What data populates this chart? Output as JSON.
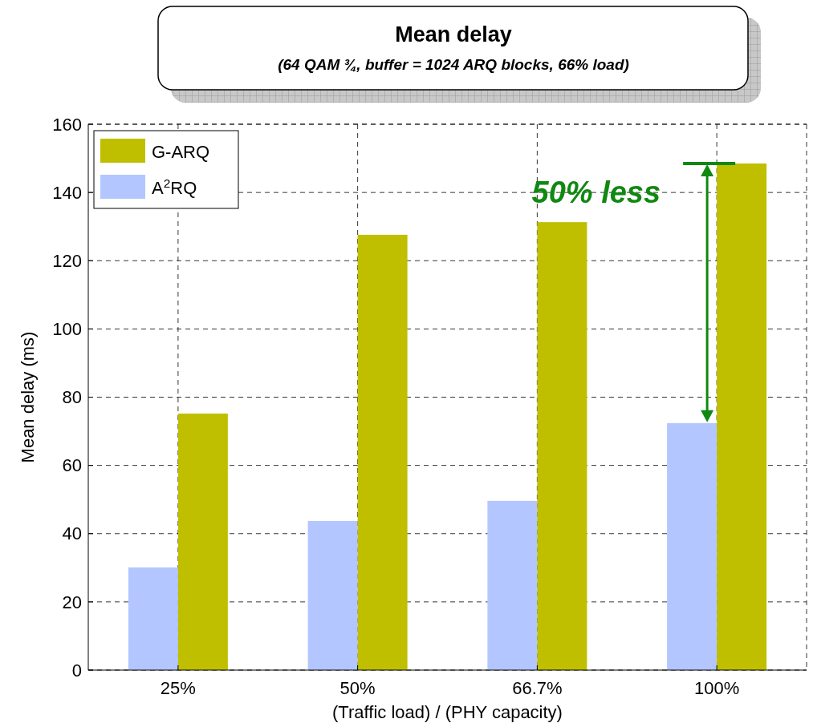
{
  "chart_data": {
    "type": "bar",
    "title": "Mean delay",
    "subtitle": "(64 QAM ¾, buffer = 1024 ARQ blocks, 66% load)",
    "xlabel": "(Traffic load) / (PHY capacity)",
    "ylabel": "Mean delay (ms)",
    "categories": [
      "25%",
      "50%",
      "66.7%",
      "100%"
    ],
    "series": [
      {
        "name": "A$^{2}$RQ",
        "color": "#b3c6ff",
        "values": [
          30.1,
          43.7,
          49.6,
          72.4
        ]
      },
      {
        "name": "G-ARQ",
        "color": "#bfbf00",
        "values": [
          75.2,
          127.6,
          131.3,
          148.5
        ]
      }
    ],
    "ylim": [
      0,
      160
    ],
    "yticks": [
      0,
      20,
      40,
      60,
      80,
      100,
      120,
      140,
      160
    ],
    "grid": true,
    "legend": "top left",
    "annotations": [
      {
        "text": "50% less",
        "x": "100%",
        "y": 140
      }
    ]
  }
}
